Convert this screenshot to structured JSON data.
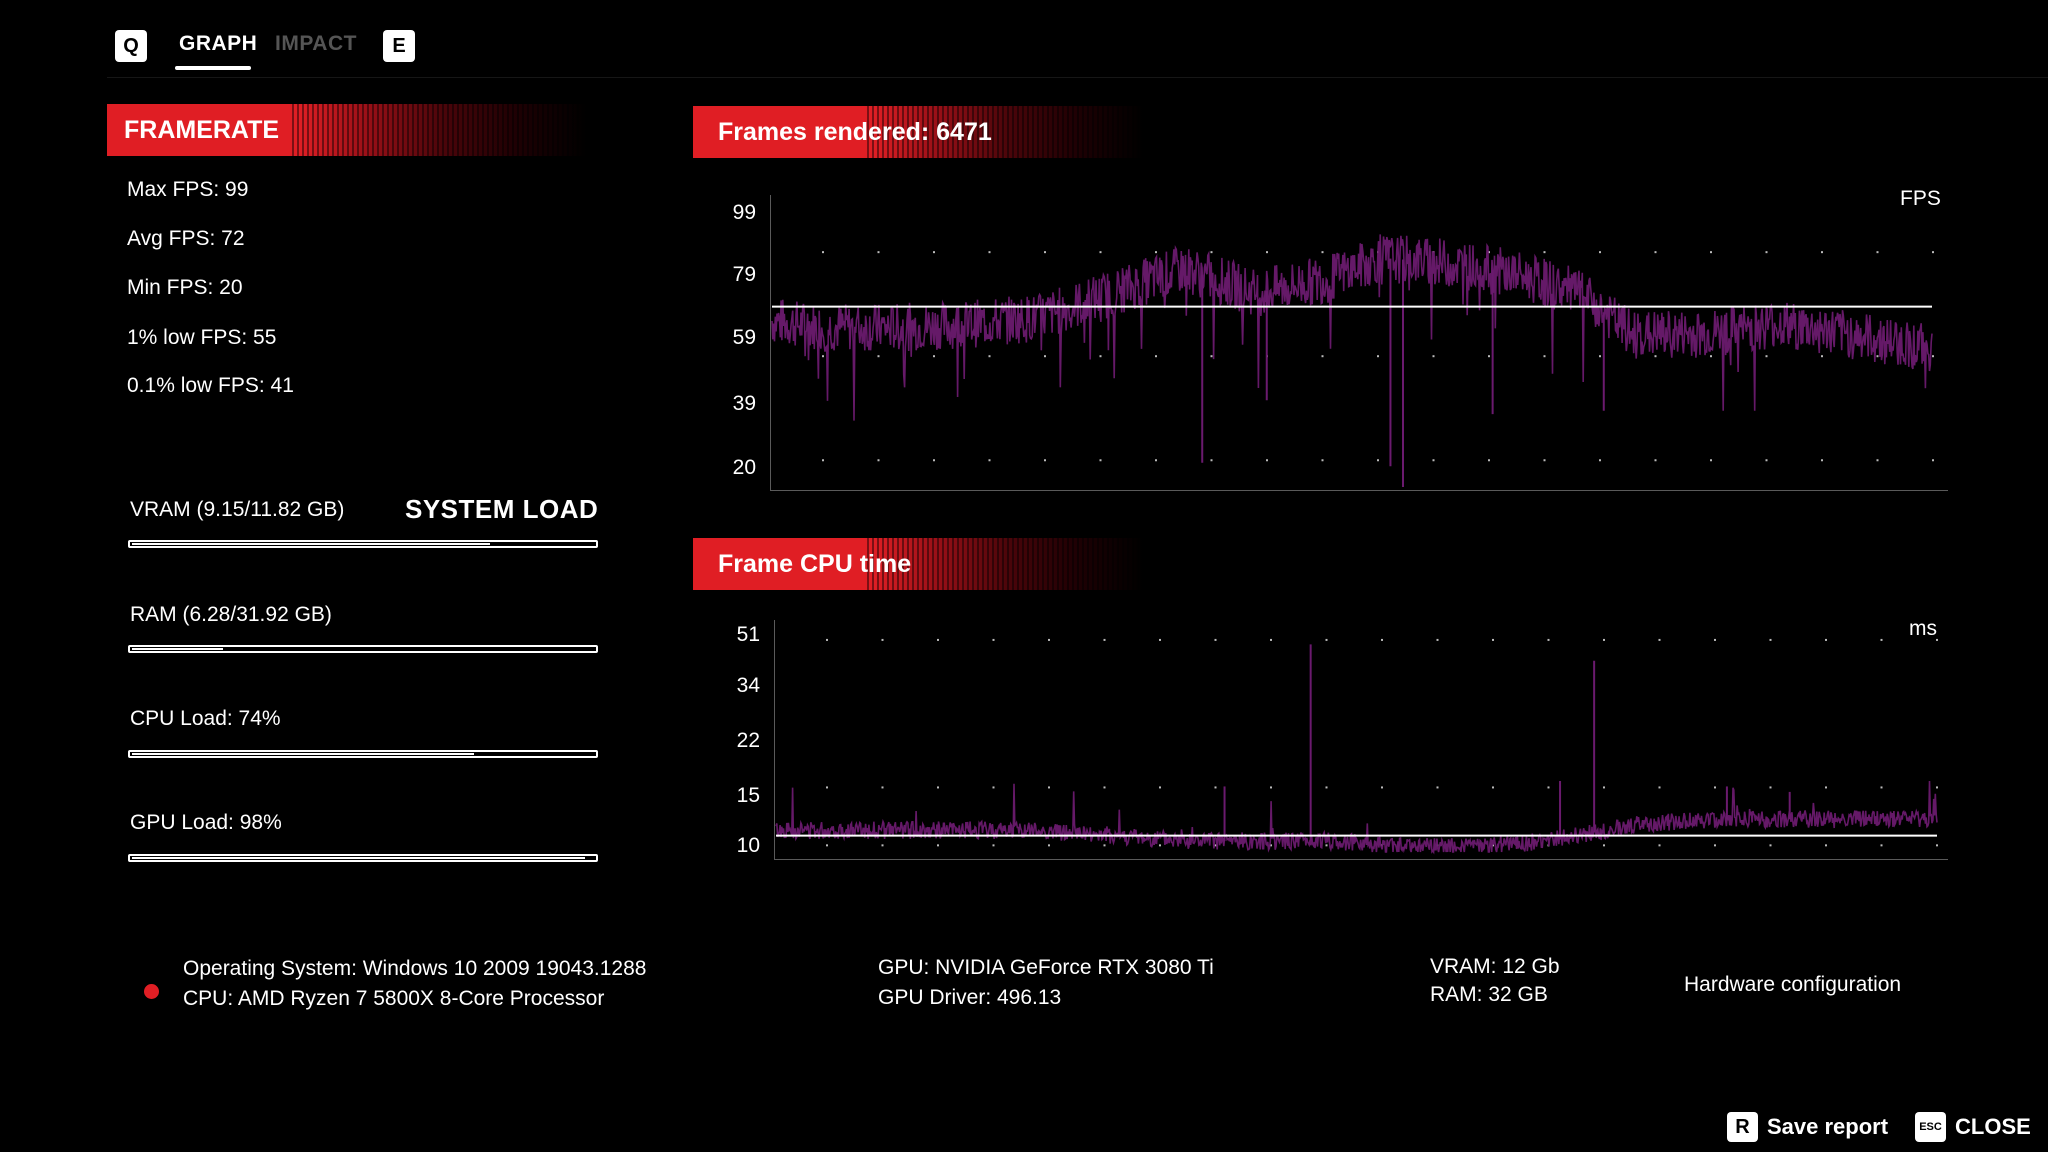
{
  "tabs": {
    "q_key": "Q",
    "e_key": "E",
    "graph": "GRAPH",
    "impact": "IMPACT"
  },
  "framerate": {
    "header": "FRAMERATE",
    "max": "Max FPS: 99",
    "avg": "Avg FPS: 72",
    "min": "Min FPS: 20",
    "low1": "1% low FPS: 55",
    "low01": "0.1% low FPS: 41"
  },
  "system_load": {
    "title": "SYSTEM LOAD",
    "vram_label": "VRAM (9.15/11.82 GB)",
    "vram_fraction": 0.774,
    "ram_label": "RAM (6.28/31.92 GB)",
    "ram_fraction": 0.197,
    "cpu_label": "CPU Load: 74%",
    "cpu_fraction": 0.74,
    "gpu_label": "GPU Load: 98%",
    "gpu_fraction": 0.98
  },
  "fps_chart": {
    "header": "Frames rendered: 6471",
    "unit": "FPS",
    "ticks": [
      "99",
      "79",
      "59",
      "39",
      "20"
    ],
    "tick_values": [
      99,
      79,
      59,
      39,
      20
    ],
    "average": 72,
    "color": "#6a1a6e"
  },
  "cpu_chart": {
    "header": "Frame CPU time",
    "unit": "ms",
    "ticks": [
      "51",
      "34",
      "22",
      "15",
      "10"
    ],
    "average": 13,
    "color": "#6a1a6e"
  },
  "chart_data": [
    {
      "type": "line",
      "title": "Frames rendered: 6471",
      "ylabel": "FPS",
      "y_ticks": [
        99,
        79,
        59,
        39,
        20
      ],
      "ylim": [
        20,
        99
      ],
      "reference_line": 72,
      "x_range": [
        0,
        6471
      ],
      "series_profile": [
        [
          0,
          68
        ],
        [
          300,
          66
        ],
        [
          700,
          66
        ],
        [
          1100,
          67
        ],
        [
          1500,
          69
        ],
        [
          1900,
          76
        ],
        [
          2300,
          83
        ],
        [
          2700,
          76
        ],
        [
          3100,
          80
        ],
        [
          3400,
          86
        ],
        [
          3700,
          85
        ],
        [
          4100,
          82
        ],
        [
          4500,
          76
        ],
        [
          4800,
          64
        ],
        [
          5200,
          64
        ],
        [
          5600,
          67
        ],
        [
          6000,
          64
        ],
        [
          6471,
          60
        ]
      ]
    },
    {
      "type": "line",
      "title": "Frame CPU time",
      "ylabel": "ms",
      "y_ticks": [
        51,
        34,
        22,
        15,
        10
      ],
      "ylim": [
        10,
        51
      ],
      "reference_line": 13,
      "x_range": [
        0,
        6471
      ],
      "series_profile": [
        [
          0,
          14
        ],
        [
          400,
          14
        ],
        [
          900,
          14
        ],
        [
          1400,
          14
        ],
        [
          1900,
          13
        ],
        [
          2300,
          12
        ],
        [
          2700,
          12
        ],
        [
          3100,
          12
        ],
        [
          3500,
          11
        ],
        [
          3900,
          11
        ],
        [
          4300,
          12
        ],
        [
          4800,
          15
        ],
        [
          5200,
          16
        ],
        [
          5700,
          16
        ],
        [
          6100,
          16
        ],
        [
          6471,
          16
        ]
      ]
    }
  ],
  "hardware": {
    "os": "Operating System: Windows 10 2009 19043.1288",
    "cpu": "CPU: AMD Ryzen 7 5800X 8-Core Processor",
    "gpu": "GPU: NVIDIA GeForce RTX 3080 Ti",
    "gpu_driver": "GPU Driver: 496.13",
    "vram": "VRAM: 12 Gb",
    "ram": "RAM: 32 GB",
    "config_label": "Hardware configuration"
  },
  "footer": {
    "save_key": "R",
    "save_label": "Save report",
    "close_key": "ESC",
    "close_label": "CLOSE"
  }
}
